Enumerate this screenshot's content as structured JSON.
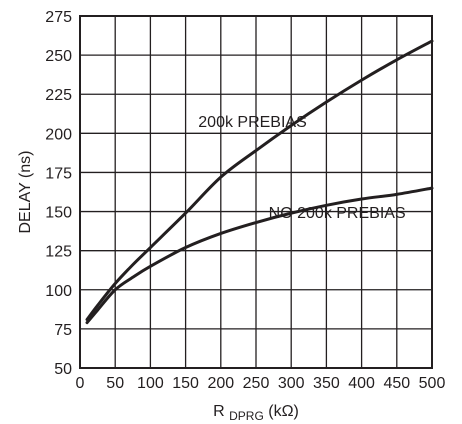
{
  "chart_data": {
    "type": "line",
    "xlabel": {
      "main": "R",
      "sub": "DPRG",
      "unit": " (kΩ)"
    },
    "ylabel": "DELAY (ns)",
    "xlim": [
      0,
      500
    ],
    "ylim": [
      50,
      275
    ],
    "x_ticks": [
      0,
      50,
      100,
      150,
      200,
      250,
      300,
      350,
      400,
      450,
      500
    ],
    "y_ticks": [
      50,
      75,
      100,
      125,
      150,
      175,
      200,
      225,
      250,
      275
    ],
    "x_tick_labels": [
      "0",
      "50",
      "100",
      "150",
      "200",
      "250",
      "300",
      "350",
      "400",
      "450",
      "500"
    ],
    "y_tick_labels": [
      "50",
      "75",
      "100",
      "125",
      "150",
      "175",
      "200",
      "225",
      "250",
      "275"
    ],
    "grid": true,
    "series": [
      {
        "name": "200k PREBIAS",
        "x": [
          10,
          25,
          50,
          75,
          100,
          150,
          200,
          250,
          300,
          350,
          400,
          450,
          500
        ],
        "y": [
          81,
          90,
          104,
          116,
          127,
          149,
          172,
          189,
          205,
          220,
          234,
          247,
          259
        ]
      },
      {
        "name": "NO 200k PREBIAS",
        "x": [
          10,
          25,
          50,
          75,
          100,
          150,
          200,
          250,
          300,
          350,
          400,
          450,
          500
        ],
        "y": [
          79,
          87,
          100,
          108,
          115,
          127,
          136,
          143,
          149,
          154,
          158,
          161,
          165
        ]
      }
    ],
    "annotations": [
      {
        "text": "200k PREBIAS",
        "x": 168,
        "y": 204
      },
      {
        "text": "NO 200k PREBIAS",
        "x": 268,
        "y": 146
      }
    ]
  }
}
